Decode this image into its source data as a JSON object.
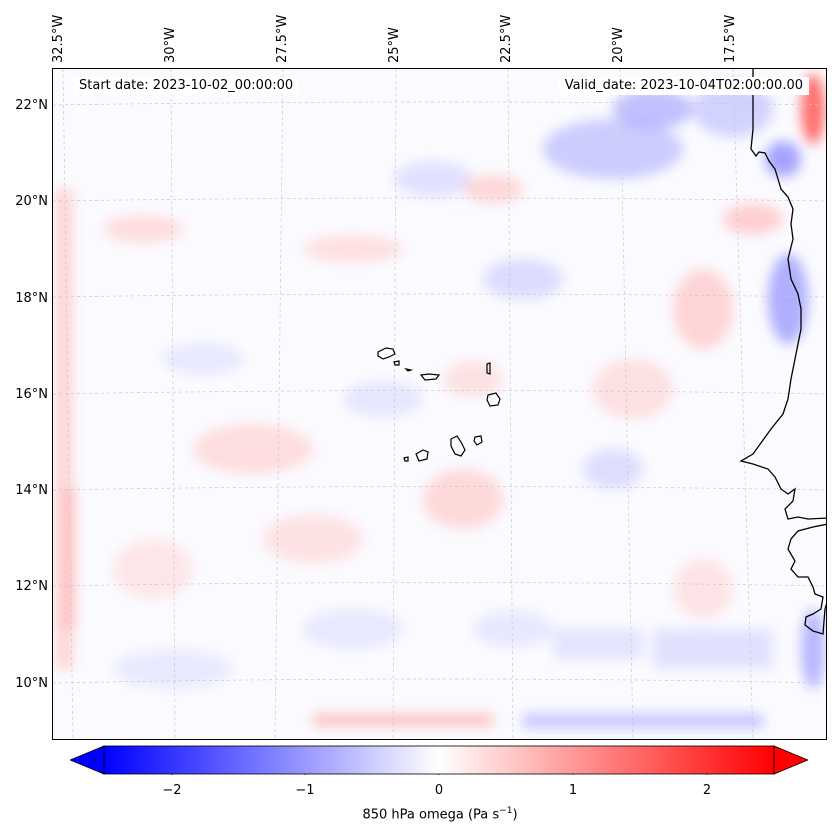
{
  "map": {
    "lon_labels": [
      "32.5°W",
      "30°W",
      "27.5°W",
      "25°W",
      "22.5°W",
      "20°W",
      "17.5°W"
    ],
    "lat_labels": [
      "22°N",
      "20°N",
      "18°N",
      "16°N",
      "14°N",
      "12°N",
      "10°N"
    ],
    "start_date": "Start date: 2023-10-02_00:00:00",
    "valid_date": "Valid_date: 2023-10-04T02:00:00.00",
    "variable": "850 hPa omega",
    "colormap": "bwr",
    "vmin": -2.5,
    "vmax": 2.5,
    "coastline_color": "#000000",
    "grid": "dashed light grey"
  },
  "colorbar": {
    "ticks": [
      "−2",
      "−1",
      "0",
      "1",
      "2"
    ],
    "label_main": "850 hPa omega (Pa s",
    "label_exp": "−1",
    "label_close": ")",
    "extend": "both",
    "colors": {
      "negative": "#0000ff",
      "zero": "#ffffff",
      "positive": "#ff0000"
    }
  }
}
